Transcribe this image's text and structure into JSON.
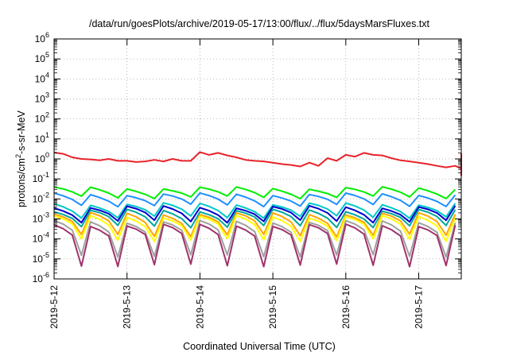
{
  "chart_data": {
    "type": "line",
    "title": "/data/run/goesPlots/archive/2019-05-17/13:00/flux/../flux/5daysMarsFluxes.txt",
    "xlabel": "Coordinated Universal Time (UTC)",
    "ylabel": {
      "main": "protons/cm",
      "sup": "2",
      "rest": "-s-sr-MeV"
    },
    "y_scale": "log",
    "ylim": [
      1e-06,
      1000000.0
    ],
    "xlim": [
      "2019-05-12 00:00",
      "2019-05-17 14:00"
    ],
    "x_tick_labels": [
      "2019-5-12",
      "2019-5-13",
      "2019-5-14",
      "2019-5-15",
      "2019-5-16",
      "2019-5-17"
    ],
    "y_ticks": [
      {
        "base": "10",
        "exp": "-6"
      },
      {
        "base": "10",
        "exp": "-5"
      },
      {
        "base": "10",
        "exp": "-4"
      },
      {
        "base": "10",
        "exp": "-3"
      },
      {
        "base": "10",
        "exp": "-2"
      },
      {
        "base": "10",
        "exp": "-1"
      },
      {
        "base": "10",
        "exp": "0"
      },
      {
        "base": "10",
        "exp": "1"
      },
      {
        "base": "10",
        "exp": "2"
      },
      {
        "base": "10",
        "exp": "3"
      },
      {
        "base": "10",
        "exp": "4"
      },
      {
        "base": "10",
        "exp": "5"
      },
      {
        "base": "10",
        "exp": "6"
      }
    ],
    "grid": true,
    "x_step_hours": 3,
    "series": [
      {
        "color": "#e8232a",
        "values": [
          2.1,
          1.8,
          1.2,
          1.0,
          0.95,
          0.85,
          1.0,
          0.8,
          0.8,
          0.7,
          0.75,
          0.9,
          0.75,
          1.0,
          0.8,
          0.8,
          2.2,
          1.6,
          2.0,
          1.5,
          1.2,
          0.9,
          0.8,
          0.75,
          0.65,
          0.55,
          0.5,
          0.42,
          0.65,
          0.45,
          1.1,
          0.8,
          1.6,
          1.3,
          2.0,
          1.6,
          1.5,
          1.1,
          0.85,
          0.75,
          0.65,
          0.55,
          0.45,
          0.38,
          0.45,
          0.33,
          0.4,
          0.3,
          0.25,
          0.45,
          0.35,
          0.9,
          0.5,
          0.55,
          0.4,
          0.45,
          0.35,
          0.45,
          0.3,
          0.55,
          0.35,
          0.6,
          0.45,
          0.75,
          0.5,
          0.6,
          0.45,
          0.65,
          1.8,
          1.3,
          1.5,
          1.6,
          1.2,
          0.9,
          0.75,
          0.55,
          0.8,
          0.5,
          0.6,
          0.45,
          0.55,
          0.45,
          0.7,
          0.5,
          1.1,
          0.7,
          1.8,
          1.5,
          1.6,
          1.2,
          0.95,
          0.75,
          0.6,
          0.5,
          0.45,
          0.38,
          0.35,
          0.3,
          0.28,
          0.25,
          0.22,
          0.25,
          0.2,
          0.18,
          0.2,
          0.17,
          0.16,
          0.18,
          0.15,
          0.22
        ]
      },
      {
        "color": "#00ee00",
        "base": 0.022,
        "amp": 1.6,
        "drop": 0.55
      },
      {
        "color": "#1e90ff",
        "base": 0.0095,
        "amp": 1.8,
        "drop": 0.5
      },
      {
        "color": "#00c8c8",
        "base": 0.0028,
        "amp": 2.0,
        "drop": 0.45
      },
      {
        "color": "#0000cd",
        "base": 0.0018,
        "amp": 2.2,
        "drop": 0.42
      },
      {
        "color": "#00a89a",
        "base": 0.0011,
        "amp": 2.4,
        "drop": 0.38
      },
      {
        "color": "#ffa500",
        "base": 0.0006,
        "amp": 3.0,
        "drop": 0.25
      },
      {
        "color": "#ffff00",
        "base": 0.0004,
        "amp": 3.2,
        "drop": 0.22
      },
      {
        "color": "#a0a0a0",
        "base": 0.00012,
        "amp": 6.0,
        "drop": 0.12
      },
      {
        "color": "#a0336b",
        "base": 6e-05,
        "amp": 8.0,
        "drop": 0.08
      }
    ]
  }
}
